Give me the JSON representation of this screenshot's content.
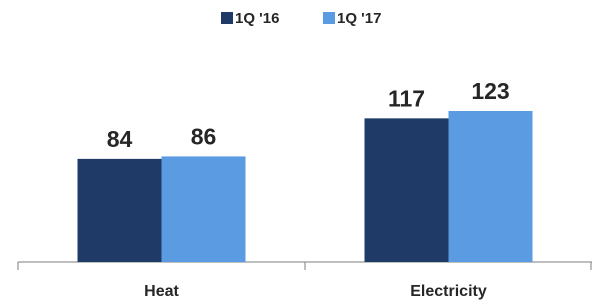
{
  "chart_data": {
    "type": "bar",
    "categories": [
      "Heat",
      "Electricity"
    ],
    "series": [
      {
        "name": "1Q '16",
        "color": "#1f3a66",
        "values": [
          84,
          117
        ]
      },
      {
        "name": "1Q '17",
        "color": "#5b9be2",
        "values": [
          86,
          123
        ]
      }
    ],
    "legend": "top"
  }
}
